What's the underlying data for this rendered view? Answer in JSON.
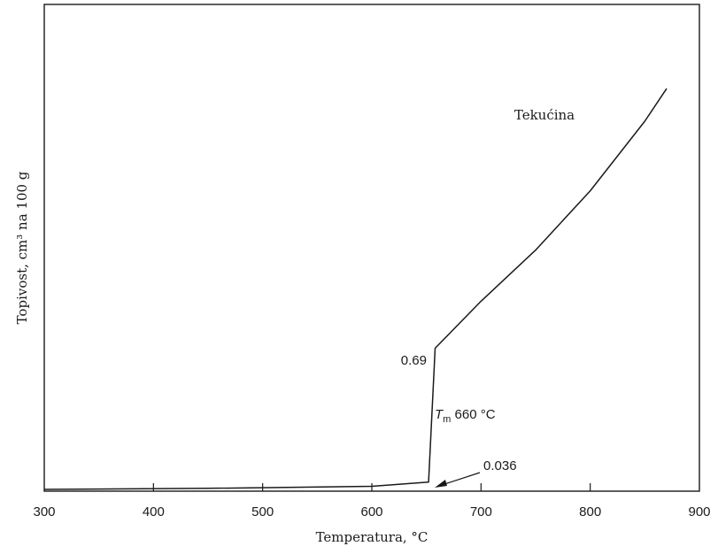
{
  "chart_data": {
    "type": "line",
    "title": "",
    "xlabel": "Temperatura, °C",
    "ylabel": "Topivost, cm³ na 100 g",
    "xlim": [
      300,
      900
    ],
    "xticks": [
      "300",
      "400",
      "500",
      "600",
      "700",
      "800",
      "900"
    ],
    "grid": false,
    "legend": "none",
    "series": [
      {
        "name": "Tekućina",
        "points": [
          {
            "x": 300,
            "y": 0.0
          },
          {
            "x": 450,
            "y": 0.005
          },
          {
            "x": 600,
            "y": 0.015
          },
          {
            "x": 652,
            "y": 0.036
          },
          {
            "x": 658,
            "y": 0.69
          },
          {
            "x": 700,
            "y": 0.92
          },
          {
            "x": 750,
            "y": 1.17
          },
          {
            "x": 800,
            "y": 1.46
          },
          {
            "x": 850,
            "y": 1.8
          },
          {
            "x": 870,
            "y": 1.96
          }
        ]
      }
    ],
    "annotations": {
      "value_069": "0.69",
      "value_0036": "0.036",
      "tm_symbol": "T",
      "tm_sub": "m",
      "tm_text": " 660 °C"
    }
  }
}
